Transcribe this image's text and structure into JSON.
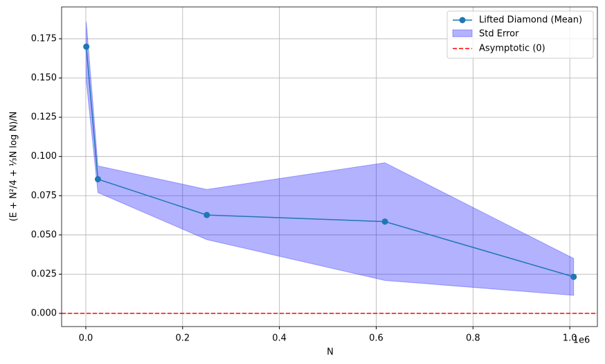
{
  "chart_data": {
    "type": "line",
    "x": [
      1000,
      25000,
      250000,
      618000,
      1008000
    ],
    "series": [
      {
        "name": "Lifted Diamond (Mean)",
        "color": "#1f77b4",
        "values": [
          0.17,
          0.0855,
          0.0627,
          0.0585,
          0.0233
        ]
      }
    ],
    "band": {
      "name": "Std Error",
      "color": "#0000ff",
      "upper": [
        0.186,
        0.094,
        0.079,
        0.096,
        0.035
      ],
      "lower": [
        0.148,
        0.077,
        0.047,
        0.021,
        0.0115
      ]
    },
    "hline": {
      "name": "Asymptotic (0)",
      "color": "#ff0000",
      "y": 0
    },
    "xlabel": "N",
    "ylabel": "(E + N²/4 + ⅓N log N)/N",
    "x_offset_label": "1e6",
    "xlim": [
      -50000,
      1057000
    ],
    "ylim": [
      -0.0084,
      0.1953
    ],
    "xticks": [
      {
        "value": 0,
        "label": "0.0"
      },
      {
        "value": 200000,
        "label": "0.2"
      },
      {
        "value": 400000,
        "label": "0.4"
      },
      {
        "value": 600000,
        "label": "0.6"
      },
      {
        "value": 800000,
        "label": "0.8"
      },
      {
        "value": 1000000,
        "label": "1.0"
      }
    ],
    "yticks": [
      {
        "value": 0,
        "label": "0.000"
      },
      {
        "value": 0.025,
        "label": "0.025"
      },
      {
        "value": 0.05,
        "label": "0.050"
      },
      {
        "value": 0.075,
        "label": "0.075"
      },
      {
        "value": 0.1,
        "label": "0.100"
      },
      {
        "value": 0.125,
        "label": "0.125"
      },
      {
        "value": 0.15,
        "label": "0.150"
      },
      {
        "value": 0.175,
        "label": "0.175"
      }
    ],
    "grid": true,
    "legend": "upper right"
  }
}
